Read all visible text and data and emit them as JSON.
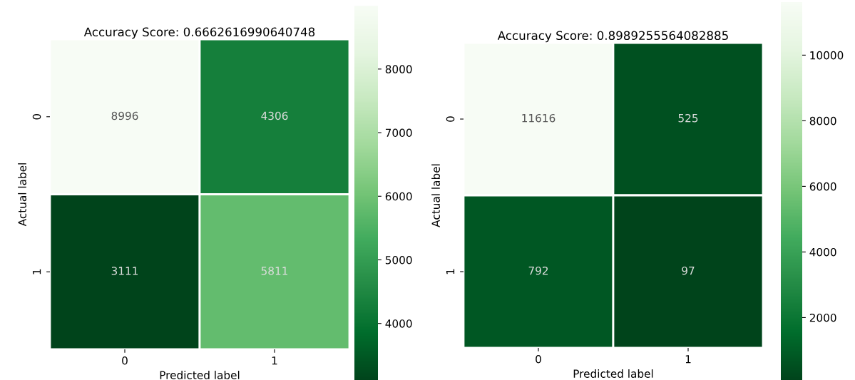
{
  "chart_data": [
    {
      "type": "heatmap",
      "title": "Accuracy Score: 0.6662616990640748",
      "xlabel": "Predicted label",
      "ylabel": "Actual label",
      "categories": [
        "0",
        "1"
      ],
      "y_categories": [
        "0",
        "1"
      ],
      "cells": [
        [
          8996,
          4306
        ],
        [
          3111,
          5811
        ]
      ],
      "data_labels": true,
      "clim": [
        3111,
        8996
      ],
      "cticks": [
        4000,
        5000,
        6000,
        7000,
        8000
      ]
    },
    {
      "type": "heatmap",
      "title": "Accuracy Score: 0.8989255564082885",
      "xlabel": "Predicted label",
      "ylabel": "Actual label",
      "categories": [
        "0",
        "1"
      ],
      "y_categories": [
        "0",
        "1"
      ],
      "cells": [
        [
          11616,
          525
        ],
        [
          792,
          97
        ]
      ],
      "data_labels": true,
      "clim": [
        97,
        11616
      ],
      "cticks": [
        2000,
        4000,
        6000,
        8000,
        10000
      ]
    }
  ]
}
